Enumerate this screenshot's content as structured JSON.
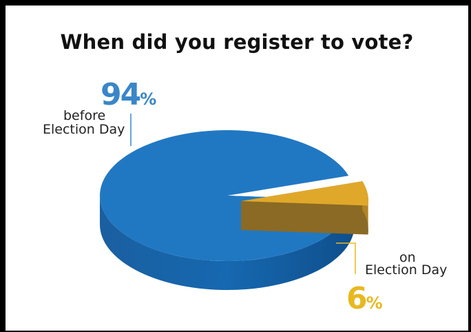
{
  "title": "When did you register to vote?",
  "colors": {
    "blue_top": "#2178c2",
    "blue_side": "#1463a8",
    "gold_top": "#e0a82a",
    "gold_side": "#8a6a24",
    "blue_text": "#3a86c8",
    "gold_text": "#e8b820",
    "frame": "#000000"
  },
  "chart_data": {
    "type": "pie",
    "style": "3d",
    "title": "When did you register to vote?",
    "slices": [
      {
        "label": "before Election Day",
        "value": 94,
        "display_value": "94",
        "unit": "%",
        "color": "#2178c2"
      },
      {
        "label": "on Election Day",
        "value": 6,
        "display_value": "6",
        "unit": "%",
        "color": "#e0a82a"
      }
    ]
  },
  "labels": {
    "before_line1": "before",
    "before_line2": "Election Day",
    "on_line1": "on",
    "on_line2": "Election Day"
  }
}
